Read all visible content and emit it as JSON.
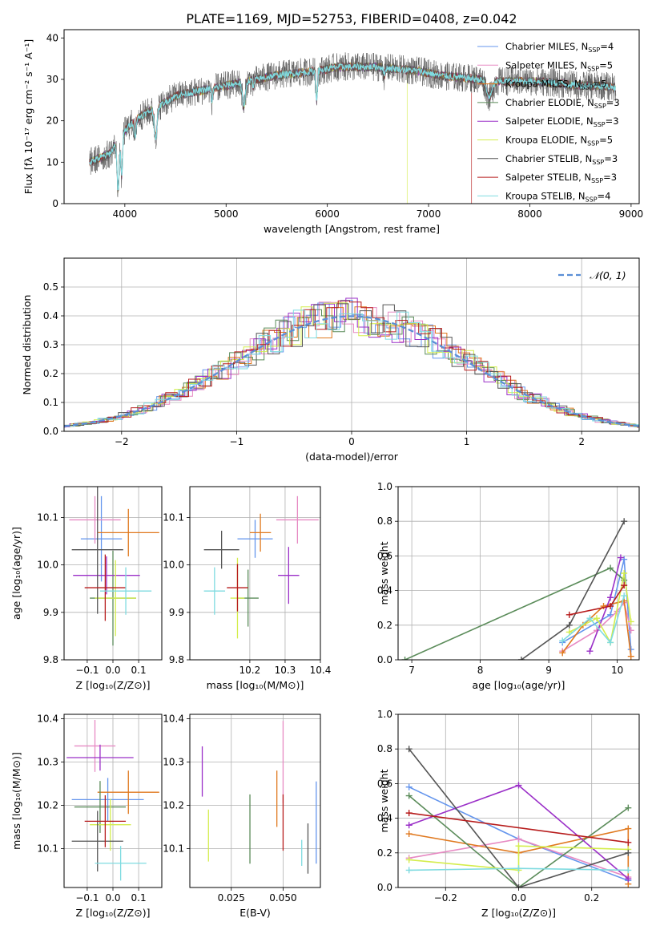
{
  "figure_title": "PLATE=1169, MJD=52753, FIBERID=0408, z=0.042",
  "colors": {
    "Chabrier MILES": "#6495ed",
    "Salpeter MILES": "#e78ac3",
    "Kroupa MILES": "#e0791f",
    "Chabrier ELODIE": "#5b8c5a",
    "Salpeter ELODIE": "#9b30c8",
    "Kroupa ELODIE": "#d4ed4c",
    "Chabrier STELIB": "#555555",
    "Salpeter STELIB": "#b71c1c",
    "Kroupa STELIB": "#7fdbe0",
    "normal": "#5b8fd6"
  },
  "chart_data": [
    {
      "id": "spectrum",
      "type": "line",
      "title": "PLATE=1169, MJD=52753, FIBERID=0408, z=0.042",
      "xlabel": "wavelength [Angstrom, rest frame]",
      "ylabel": "Flux [fλ 10⁻¹⁷ erg cm⁻² s⁻¹ A⁻¹]",
      "xlim": [
        3400,
        9080
      ],
      "ylim": [
        0,
        42
      ],
      "xticks": [
        "4000",
        "5000",
        "6000",
        "7000",
        "8000",
        "9000"
      ],
      "yticks": [
        "0",
        "10",
        "20",
        "30",
        "40"
      ],
      "legend_position": "top-right",
      "legend": [
        {
          "label": "Chabrier MILES, N",
          "sub": "SSP",
          "suffix": "=4",
          "color_key": "Chabrier MILES"
        },
        {
          "label": "Salpeter MILES, N",
          "sub": "SSP",
          "suffix": "=5",
          "color_key": "Salpeter MILES"
        },
        {
          "label": "Kroupa MILES, N",
          "sub": "SSP",
          "suffix": "=5",
          "color_key": "Kroupa MILES"
        },
        {
          "label": "Chabrier ELODIE, N",
          "sub": "SSP",
          "suffix": "=3",
          "color_key": "Chabrier ELODIE"
        },
        {
          "label": "Salpeter ELODIE, N",
          "sub": "SSP",
          "suffix": "=3",
          "color_key": "Salpeter ELODIE"
        },
        {
          "label": "Kroupa ELODIE, N",
          "sub": "SSP",
          "suffix": "=5",
          "color_key": "Kroupa ELODIE"
        },
        {
          "label": "Chabrier STELIB, N",
          "sub": "SSP",
          "suffix": "=3",
          "color_key": "Chabrier STELIB"
        },
        {
          "label": "Salpeter STELIB, N",
          "sub": "SSP",
          "suffix": "=3",
          "color_key": "Salpeter STELIB"
        },
        {
          "label": "Kroupa STELIB, N",
          "sub": "SSP",
          "suffix": "=4",
          "color_key": "Kroupa STELIB"
        }
      ],
      "continuum": [
        [
          3650,
          10
        ],
        [
          3750,
          11
        ],
        [
          3850,
          12
        ],
        [
          3950,
          16
        ],
        [
          4050,
          19
        ],
        [
          4150,
          21
        ],
        [
          4300,
          23
        ],
        [
          4500,
          26
        ],
        [
          4700,
          27
        ],
        [
          4900,
          28
        ],
        [
          5100,
          29
        ],
        [
          5300,
          30
        ],
        [
          5500,
          31
        ],
        [
          5700,
          31.5
        ],
        [
          5900,
          32
        ],
        [
          6100,
          33
        ],
        [
          6300,
          33
        ],
        [
          6500,
          33
        ],
        [
          6700,
          32.5
        ],
        [
          6900,
          32
        ],
        [
          7100,
          31
        ],
        [
          7300,
          30.5
        ],
        [
          7500,
          30
        ],
        [
          7700,
          29.5
        ],
        [
          7900,
          29.5
        ],
        [
          8100,
          29.5
        ],
        [
          8300,
          29
        ],
        [
          8500,
          28.5
        ],
        [
          8700,
          28.5
        ],
        [
          8850,
          28
        ]
      ],
      "absorption_features": [
        [
          3934,
          15,
          -12
        ],
        [
          3969,
          12,
          -10
        ],
        [
          4101,
          12,
          -4
        ],
        [
          4305,
          20,
          -7
        ],
        [
          4861,
          12,
          -3
        ],
        [
          5175,
          20,
          -6
        ],
        [
          5270,
          10,
          -2
        ],
        [
          5894,
          10,
          -7
        ],
        [
          6563,
          10,
          -2
        ],
        [
          7600,
          40,
          -4
        ]
      ],
      "dropouts": [
        {
          "series": "Chabrier ELODIE",
          "x": 3905
        },
        {
          "series": "Kroupa ELODIE",
          "x": 6790
        },
        {
          "series": "Salpeter STELIB",
          "x": 7425
        }
      ]
    },
    {
      "id": "residuals",
      "type": "histogram",
      "xlabel": "(data-model)/error",
      "ylabel": "Normed distribution",
      "xlim": [
        -2.5,
        2.5
      ],
      "ylim": [
        0,
        0.6
      ],
      "xticks": [
        -2,
        -1,
        0,
        1,
        2
      ],
      "yticks": [
        0.0,
        0.1,
        0.2,
        0.3,
        0.4,
        0.5
      ],
      "grid": true,
      "bin_width": 0.1,
      "legend_position": "top-right",
      "legend": [
        {
          "label": "𝒩(0, 1)",
          "style": "dashed",
          "color_key": "normal"
        }
      ]
    },
    {
      "id": "age_vs_Z",
      "type": "errorbar",
      "xlabel": "Z [log₁₀(Z/Z⊙)]",
      "ylabel": "age  [log₁₀(age/yr)]",
      "xlim": [
        -0.19,
        0.19
      ],
      "ylim": [
        9.8,
        10.165
      ],
      "xticks": [
        -0.1,
        0.0,
        0.1
      ],
      "yticks": [
        9.8,
        9.9,
        10.0,
        10.1
      ],
      "grid": true,
      "points": [
        {
          "series": "Chabrier MILES",
          "x": -0.045,
          "y": 10.055,
          "xerr": 0.08,
          "yerr": 0.09
        },
        {
          "series": "Salpeter MILES",
          "x": -0.07,
          "y": 10.095,
          "xerr": 0.1,
          "yerr": 0.05
        },
        {
          "series": "Kroupa MILES",
          "x": 0.06,
          "y": 10.068,
          "xerr": 0.12,
          "yerr": 0.05
        },
        {
          "series": "Chabrier ELODIE",
          "x": 0.0,
          "y": 9.93,
          "xerr": 0.09,
          "yerr": 0.1
        },
        {
          "series": "Salpeter ELODIE",
          "x": -0.025,
          "y": 9.978,
          "xerr": 0.13,
          "yerr": 0.04
        },
        {
          "series": "Kroupa ELODIE",
          "x": 0.01,
          "y": 9.93,
          "xerr": 0.08,
          "yerr": 0.08
        },
        {
          "series": "Chabrier STELIB",
          "x": -0.06,
          "y": 10.032,
          "xerr": 0.1,
          "yerr": 0.135
        },
        {
          "series": "Salpeter STELIB",
          "x": -0.03,
          "y": 9.952,
          "xerr": 0.08,
          "yerr": 0.07
        },
        {
          "series": "Kroupa STELIB",
          "x": 0.05,
          "y": 9.945,
          "xerr": 0.1,
          "yerr": 0.05
        }
      ]
    },
    {
      "id": "age_vs_mass",
      "type": "errorbar",
      "xlabel": "mass [log₁₀(M/M⊙)]",
      "ylabel": "",
      "xlim": [
        10.03,
        10.4
      ],
      "ylim": [
        9.8,
        10.165
      ],
      "xticks": [
        10.2,
        10.3,
        10.4
      ],
      "yticks": [
        9.8,
        9.9,
        10.0,
        10.1
      ],
      "grid": true,
      "points": [
        {
          "series": "Chabrier MILES",
          "x": 10.215,
          "y": 10.055,
          "xerr": 0.05,
          "yerr": 0.04
        },
        {
          "series": "Salpeter MILES",
          "x": 10.335,
          "y": 10.095,
          "xerr": 0.06,
          "yerr": 0.05
        },
        {
          "series": "Kroupa MILES",
          "x": 10.23,
          "y": 10.068,
          "xerr": 0.03,
          "yerr": 0.04
        },
        {
          "series": "Chabrier ELODIE",
          "x": 10.195,
          "y": 9.93,
          "xerr": 0.03,
          "yerr": 0.06
        },
        {
          "series": "Salpeter ELODIE",
          "x": 10.31,
          "y": 9.978,
          "xerr": 0.03,
          "yerr": 0.06
        },
        {
          "series": "Kroupa ELODIE",
          "x": 10.165,
          "y": 9.93,
          "xerr": 0.02,
          "yerr": 0.085
        },
        {
          "series": "Chabrier STELIB",
          "x": 10.12,
          "y": 10.032,
          "xerr": 0.05,
          "yerr": 0.04
        },
        {
          "series": "Salpeter STELIB",
          "x": 10.165,
          "y": 9.952,
          "xerr": 0.03,
          "yerr": 0.05
        },
        {
          "series": "Kroupa STELIB",
          "x": 10.1,
          "y": 9.945,
          "xerr": 0.03,
          "yerr": 0.05
        }
      ]
    },
    {
      "id": "weight_vs_age",
      "type": "line",
      "xlabel": "age  [log₁₀(age/yr)]",
      "ylabel": "mass weight",
      "xlim": [
        6.8,
        10.32
      ],
      "ylim": [
        0,
        1.0
      ],
      "xticks": [
        7,
        8,
        9,
        10
      ],
      "yticks": [
        0.0,
        0.2,
        0.4,
        0.6,
        0.8,
        1.0
      ],
      "grid": true,
      "series": [
        {
          "name": "Chabrier MILES",
          "points": [
            [
              9.2,
              0.1
            ],
            [
              9.9,
              0.26
            ],
            [
              10.1,
              0.58
            ],
            [
              10.2,
              0.06
            ]
          ]
        },
        {
          "name": "Salpeter MILES",
          "points": [
            [
              9.2,
              0.05
            ],
            [
              9.7,
              0.17
            ],
            [
              10.0,
              0.28
            ],
            [
              10.1,
              0.33
            ],
            [
              10.2,
              0.17
            ]
          ]
        },
        {
          "name": "Kroupa MILES",
          "points": [
            [
              9.2,
              0.04
            ],
            [
              9.5,
              0.2
            ],
            [
              9.8,
              0.31
            ],
            [
              10.1,
              0.34
            ],
            [
              10.2,
              0.02
            ]
          ]
        },
        {
          "name": "Chabrier ELODIE",
          "points": [
            [
              6.9,
              0.0
            ],
            [
              9.9,
              0.53
            ],
            [
              10.1,
              0.46
            ]
          ]
        },
        {
          "name": "Salpeter ELODIE",
          "points": [
            [
              9.6,
              0.05
            ],
            [
              9.9,
              0.36
            ],
            [
              10.05,
              0.59
            ]
          ]
        },
        {
          "name": "Kroupa ELODIE",
          "points": [
            [
              9.3,
              0.16
            ],
            [
              9.7,
              0.24
            ],
            [
              9.9,
              0.1
            ],
            [
              10.1,
              0.5
            ],
            [
              10.2,
              0.22
            ]
          ]
        },
        {
          "name": "Chabrier STELIB",
          "points": [
            [
              8.6,
              0.0
            ],
            [
              9.3,
              0.2
            ],
            [
              10.1,
              0.8
            ]
          ]
        },
        {
          "name": "Salpeter STELIB",
          "points": [
            [
              9.3,
              0.26
            ],
            [
              9.9,
              0.31
            ],
            [
              10.1,
              0.43
            ]
          ]
        },
        {
          "name": "Kroupa STELIB",
          "points": [
            [
              9.2,
              0.11
            ],
            [
              9.6,
              0.24
            ],
            [
              9.9,
              0.1
            ],
            [
              10.1,
              0.37
            ]
          ]
        }
      ]
    },
    {
      "id": "mass_vs_Z",
      "type": "errorbar",
      "xlabel": "Z [log₁₀(Z/Z⊙)]",
      "ylabel": "mass [log₁₀(M/M⊙)]",
      "xlim": [
        -0.19,
        0.19
      ],
      "ylim": [
        10.01,
        10.41
      ],
      "xticks": [
        -0.1,
        0.0,
        0.1
      ],
      "yticks": [
        10.1,
        10.2,
        10.3,
        10.4
      ],
      "grid": true,
      "points": [
        {
          "series": "Chabrier MILES",
          "x": -0.02,
          "y": 10.213,
          "xerr": 0.14,
          "yerr": 0.05
        },
        {
          "series": "Salpeter MILES",
          "x": -0.07,
          "y": 10.337,
          "xerr": 0.08,
          "yerr": 0.06
        },
        {
          "series": "Kroupa MILES",
          "x": 0.06,
          "y": 10.23,
          "xerr": 0.12,
          "yerr": 0.05
        },
        {
          "series": "Chabrier ELODIE",
          "x": -0.05,
          "y": 10.196,
          "xerr": 0.1,
          "yerr": 0.06
        },
        {
          "series": "Salpeter ELODIE",
          "x": -0.05,
          "y": 10.31,
          "xerr": 0.13,
          "yerr": 0.03
        },
        {
          "series": "Kroupa ELODIE",
          "x": -0.01,
          "y": 10.155,
          "xerr": 0.08,
          "yerr": 0.06
        },
        {
          "series": "Chabrier STELIB",
          "x": -0.06,
          "y": 10.117,
          "xerr": 0.1,
          "yerr": 0.07
        },
        {
          "series": "Salpeter STELIB",
          "x": -0.03,
          "y": 10.163,
          "xerr": 0.08,
          "yerr": 0.06
        },
        {
          "series": "Kroupa STELIB",
          "x": 0.03,
          "y": 10.066,
          "xerr": 0.1,
          "yerr": 0.04
        }
      ]
    },
    {
      "id": "mass_vs_ebv",
      "type": "errorbar",
      "xlabel": "E(B-V)",
      "ylabel": "",
      "xlim": [
        0.005,
        0.068
      ],
      "ylim": [
        10.01,
        10.41
      ],
      "xticks": [
        0.025,
        0.05
      ],
      "yticks": [
        10.1,
        10.2,
        10.3,
        10.4
      ],
      "grid": true,
      "points": [
        {
          "series": "Chabrier MILES",
          "x": 0.066,
          "y": 10.16,
          "yerr": 0.095
        },
        {
          "series": "Salpeter MILES",
          "x": 0.05,
          "y": 10.3,
          "yerr": 0.095
        },
        {
          "series": "Kroupa MILES",
          "x": 0.047,
          "y": 10.215,
          "yerr": 0.065
        },
        {
          "series": "Chabrier ELODIE",
          "x": 0.034,
          "y": 10.145,
          "yerr": 0.08
        },
        {
          "series": "Salpeter ELODIE",
          "x": 0.011,
          "y": 10.278,
          "yerr": 0.058
        },
        {
          "series": "Kroupa ELODIE",
          "x": 0.014,
          "y": 10.13,
          "yerr": 0.06
        },
        {
          "series": "Chabrier STELIB",
          "x": 0.062,
          "y": 10.1,
          "yerr": 0.058
        },
        {
          "series": "Salpeter STELIB",
          "x": 0.05,
          "y": 10.16,
          "yerr": 0.065
        },
        {
          "series": "Kroupa STELIB",
          "x": 0.059,
          "y": 10.09,
          "yerr": 0.03
        }
      ]
    },
    {
      "id": "weight_vs_Z",
      "type": "line",
      "xlabel": "Z [log₁₀(Z/Z⊙)]",
      "ylabel": "mass weight",
      "xlim": [
        -0.33,
        0.33
      ],
      "ylim": [
        0,
        1.0
      ],
      "xticks": [
        -0.2,
        0.0,
        0.2
      ],
      "yticks": [
        0.0,
        0.2,
        0.4,
        0.6,
        0.8,
        1.0
      ],
      "grid": true,
      "series": [
        {
          "name": "Chabrier MILES",
          "points": [
            [
              -0.3,
              0.58
            ],
            [
              0.0,
              0.28
            ],
            [
              0.3,
              0.04
            ]
          ]
        },
        {
          "name": "Salpeter MILES",
          "points": [
            [
              -0.3,
              0.17
            ],
            [
              0.0,
              0.28
            ],
            [
              0.3,
              0.06
            ]
          ]
        },
        {
          "name": "Kroupa MILES",
          "points": [
            [
              -0.3,
              0.31
            ],
            [
              0.0,
              0.2
            ],
            [
              0.3,
              0.34
            ],
            [
              0.3,
              0.02
            ]
          ]
        },
        {
          "name": "Chabrier ELODIE",
          "points": [
            [
              -0.3,
              0.53
            ],
            [
              0.0,
              0.0
            ],
            [
              0.3,
              0.46
            ]
          ]
        },
        {
          "name": "Salpeter ELODIE",
          "points": [
            [
              -0.3,
              0.36
            ],
            [
              0.0,
              0.59
            ],
            [
              0.3,
              0.05
            ]
          ]
        },
        {
          "name": "Kroupa ELODIE",
          "points": [
            [
              -0.3,
              0.16
            ],
            [
              0.0,
              0.1
            ],
            [
              0.0,
              0.24
            ],
            [
              0.3,
              0.22
            ]
          ]
        },
        {
          "name": "Chabrier STELIB",
          "points": [
            [
              -0.3,
              0.8
            ],
            [
              0.0,
              0.0
            ],
            [
              0.3,
              0.2
            ]
          ]
        },
        {
          "name": "Salpeter STELIB",
          "points": [
            [
              -0.3,
              0.43
            ],
            [
              0.3,
              0.26
            ]
          ]
        },
        {
          "name": "Kroupa STELIB",
          "points": [
            [
              -0.3,
              0.1
            ],
            [
              0.0,
              0.11
            ],
            [
              0.3,
              0.1
            ]
          ]
        }
      ]
    }
  ]
}
